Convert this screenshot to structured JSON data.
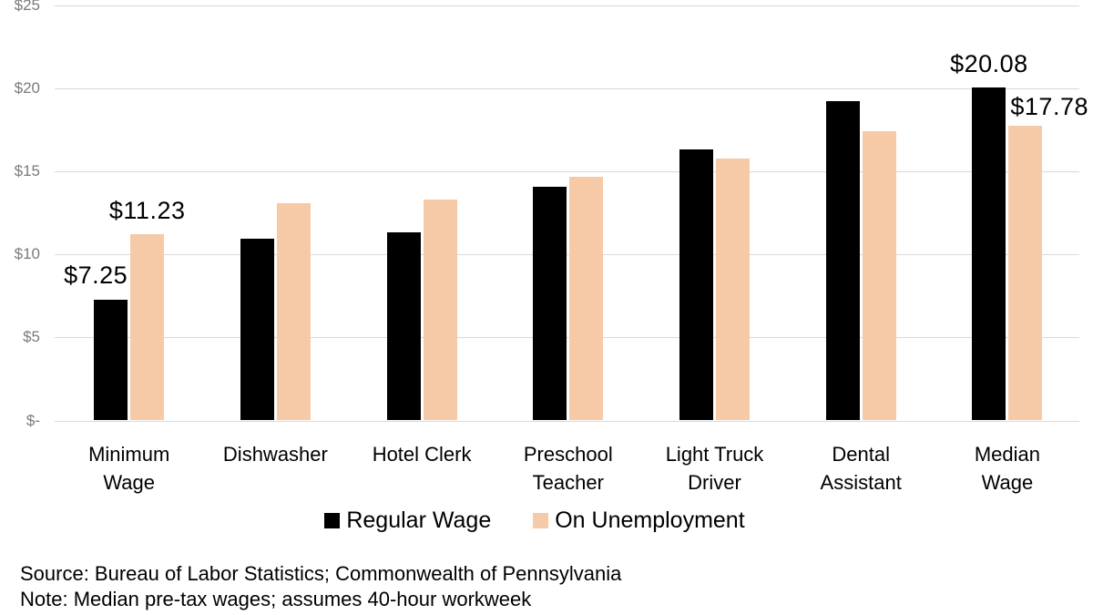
{
  "chart_data": {
    "type": "bar",
    "title": "",
    "xlabel": "",
    "ylabel": "",
    "categories": [
      "Minimum Wage",
      "Dishwasher",
      "Hotel Clerk",
      "Preschool Teacher",
      "Light Truck Driver",
      "Dental Assistant",
      "Median Wage"
    ],
    "category_label_lines": [
      [
        "Minimum",
        "Wage"
      ],
      [
        "Dishwasher"
      ],
      [
        "Hotel Clerk"
      ],
      [
        "Preschool",
        "Teacher"
      ],
      [
        "Light Truck",
        "Driver"
      ],
      [
        "Dental",
        "Assistant"
      ],
      [
        "Median",
        "Wage"
      ]
    ],
    "series": [
      {
        "name": "Regular Wage",
        "color": "#000000",
        "values": [
          7.25,
          10.93,
          11.36,
          14.07,
          16.32,
          19.23,
          20.08
        ]
      },
      {
        "name": "On Unemployment",
        "color": "#F7CAA7",
        "values": [
          11.23,
          13.1,
          13.3,
          14.7,
          15.8,
          17.4,
          17.78
        ]
      }
    ],
    "annotations": [
      {
        "text": "$7.25",
        "category_index": 0,
        "series_index": 0,
        "placement": "above-end"
      },
      {
        "text": "$11.23",
        "category_index": 0,
        "series_index": 1,
        "placement": "above"
      },
      {
        "text": "$20.08",
        "category_index": 6,
        "series_index": 0,
        "placement": "above"
      },
      {
        "text": "$17.78",
        "category_index": 6,
        "series_index": 1,
        "placement": "top-start"
      }
    ],
    "y_axis": {
      "range": [
        0,
        25
      ],
      "ticks": [
        {
          "value": 0,
          "label": "$-"
        },
        {
          "value": 5,
          "label": "$5"
        },
        {
          "value": 10,
          "label": "$10"
        },
        {
          "value": 15,
          "label": "$15"
        },
        {
          "value": 20,
          "label": "$20"
        },
        {
          "value": 25,
          "label": "$25"
        }
      ]
    },
    "grid": "horizontal",
    "legend_position": "bottom-center",
    "colors": {
      "gridline": "#D9D9D9",
      "tick_label": "#7A7A7A",
      "annotation_text": "#000000"
    }
  },
  "footer": {
    "source": "Source: Bureau of Labor Statistics; Commonwealth of Pennsylvania",
    "note": "Note: Median pre-tax wages; assumes 40-hour workweek"
  }
}
